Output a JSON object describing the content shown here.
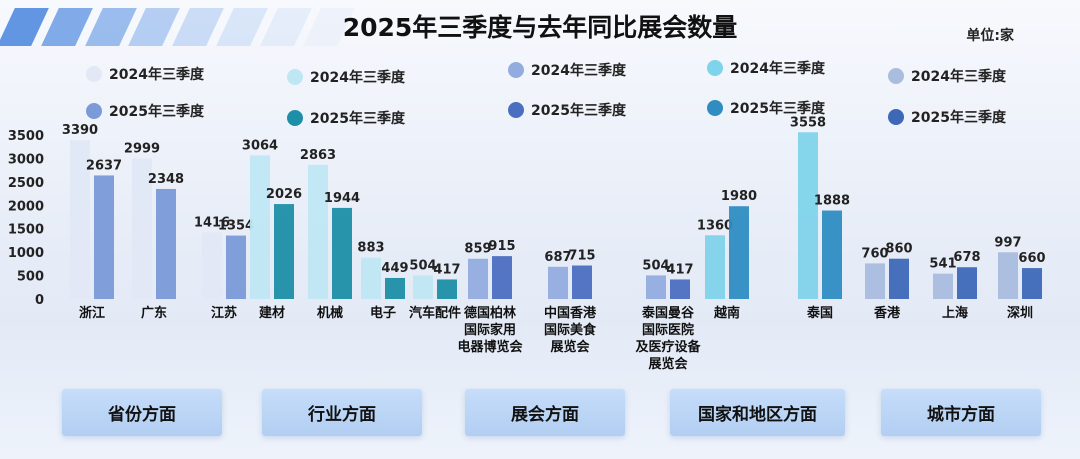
{
  "title": "2025年三季度与去年同比展会数量",
  "unit": "单位:家",
  "legend": [
    {
      "label": "2024年三季度",
      "color": "#e2e8f5"
    },
    {
      "label": "2025年三季度",
      "color": "#7a9ad8"
    },
    {
      "label": "2024年三季度",
      "color": "#bfe7f3"
    },
    {
      "label": "2025年三季度",
      "color": "#1e8fa8"
    },
    {
      "label": "2024年三季度",
      "color": "#93acdf"
    },
    {
      "label": "2025年三季度",
      "color": "#4b6fc0"
    },
    {
      "label": "2024年三季度",
      "color": "#7fd3ea"
    },
    {
      "label": "2025年三季度",
      "color": "#2f8dc2"
    },
    {
      "label": "2024年三季度",
      "color": "#aabddf"
    },
    {
      "label": "2025年三季度",
      "color": "#3d68b8"
    }
  ],
  "categories": [
    {
      "label": "省份方面"
    },
    {
      "label": "行业方面"
    },
    {
      "label": "展会方面"
    },
    {
      "label": "国家和地区方面"
    },
    {
      "label": "城市方面"
    }
  ],
  "chart_data": {
    "type": "bar",
    "title": "2025年三季度与去年同比展会数量",
    "ylim": [
      0,
      3500
    ],
    "yticks": [
      0,
      500,
      1000,
      1500,
      2000,
      2500,
      3000,
      3500
    ],
    "groups": [
      {
        "name": "浙江",
        "group": 0,
        "label_lines": [
          "浙江"
        ],
        "values": [
          3390,
          2637
        ],
        "labels": [
          "3390",
          "2637"
        ],
        "colors": [
          "#e2e8f5",
          "#7a9ad8"
        ]
      },
      {
        "name": "广东",
        "group": 0,
        "label_lines": [
          "广东"
        ],
        "values": [
          2999,
          2348
        ],
        "labels": [
          "2999",
          "2348"
        ],
        "colors": [
          "#e2e8f5",
          "#7a9ad8"
        ]
      },
      {
        "name": "江苏",
        "group": 0,
        "label_lines": [
          "江苏"
        ],
        "values": [
          1416,
          1354
        ],
        "labels": [
          "1416",
          "1354"
        ],
        "colors": [
          "#e2e8f5",
          "#7a9ad8"
        ]
      },
      {
        "name": "建材",
        "group": 1,
        "label_lines": [
          "建材"
        ],
        "values": [
          3064,
          2026
        ],
        "labels": [
          "3064",
          "2026"
        ],
        "colors": [
          "#bfe7f3",
          "#1e8fa8"
        ]
      },
      {
        "name": "机械",
        "group": 1,
        "label_lines": [
          "机械"
        ],
        "values": [
          2863,
          1944
        ],
        "labels": [
          "2863",
          "1944"
        ],
        "colors": [
          "#bfe7f3",
          "#1e8fa8"
        ]
      },
      {
        "name": "电子",
        "group": 1,
        "label_lines": [
          "电子"
        ],
        "values": [
          883,
          449
        ],
        "labels": [
          "883",
          "449"
        ],
        "colors": [
          "#bfe7f3",
          "#1e8fa8"
        ]
      },
      {
        "name": "汽车配件",
        "group": 1,
        "label_lines": [
          "汽车配件"
        ],
        "values": [
          504,
          417
        ],
        "labels": [
          "504",
          "417"
        ],
        "colors": [
          "#bfe7f3",
          "#1e8fa8"
        ]
      },
      {
        "name": "德国柏林国际家用电器博览会",
        "group": 2,
        "label_lines": [
          "德国柏林",
          "国际家用",
          "电器博览会"
        ],
        "values": [
          859,
          915
        ],
        "labels": [
          "859",
          "915"
        ],
        "colors": [
          "#93acdf",
          "#4b6fc0"
        ]
      },
      {
        "name": "中国香港国际美食展览会",
        "group": 2,
        "label_lines": [
          "中国香港",
          "国际美食",
          "展览会"
        ],
        "values": [
          687,
          715
        ],
        "labels": [
          "687",
          "715"
        ],
        "colors": [
          "#93acdf",
          "#4b6fc0"
        ]
      },
      {
        "name": "泰国曼谷国际医院及医疗设备展览会",
        "group": 2,
        "label_lines": [
          "泰国曼谷",
          "国际医院",
          "及医疗设备",
          "展览会"
        ],
        "values": [
          504,
          417
        ],
        "labels": [
          "504",
          "417"
        ],
        "colors": [
          "#93acdf",
          "#4b6fc0"
        ]
      },
      {
        "name": "越南",
        "group": 3,
        "label_lines": [
          "越南"
        ],
        "values": [
          1360,
          1980
        ],
        "labels": [
          "1360",
          "1980"
        ],
        "colors": [
          "#7fd3ea",
          "#2f8dc2"
        ]
      },
      {
        "name": "泰国",
        "group": 3,
        "label_lines": [
          "泰国"
        ],
        "values": [
          3558,
          1888
        ],
        "labels": [
          "3558",
          "1888"
        ],
        "colors": [
          "#7fd3ea",
          "#2f8dc2"
        ]
      },
      {
        "name": "香港",
        "group": 4,
        "label_lines": [
          "香港"
        ],
        "values": [
          760,
          860
        ],
        "labels": [
          "760",
          "860"
        ],
        "colors": [
          "#aabddf",
          "#3d68b8"
        ]
      },
      {
        "name": "上海",
        "group": 4,
        "label_lines": [
          "上海"
        ],
        "values": [
          541,
          678
        ],
        "labels": [
          "541",
          "678"
        ],
        "colors": [
          "#aabddf",
          "#3d68b8"
        ]
      },
      {
        "name": "深圳",
        "group": 4,
        "label_lines": [
          "深圳"
        ],
        "values": [
          997,
          660
        ],
        "labels": [
          "997",
          "660"
        ],
        "colors": [
          "#aabddf",
          "#3d68b8"
        ]
      }
    ]
  }
}
